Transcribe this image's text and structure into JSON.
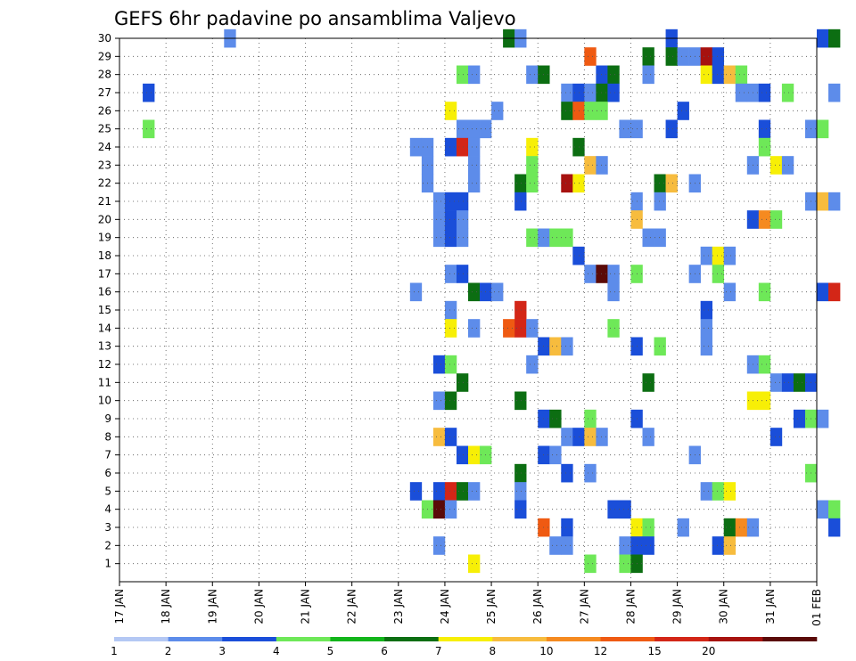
{
  "chart_data": {
    "type": "heatmap",
    "title": "GEFS 6hr padavine po ansamblima Valjevo",
    "xlabel": "",
    "ylabel": "",
    "x_ticks": [
      "17 JAN",
      "18 JAN",
      "19 JAN",
      "20 JAN",
      "21 JAN",
      "22 JAN",
      "23 JAN",
      "24 JAN",
      "25 JAN",
      "26 JAN",
      "27 JAN",
      "28 JAN",
      "29 JAN",
      "30 JAN",
      "31 JAN",
      "01 FEB"
    ],
    "y_ticks": [
      "1",
      "2",
      "3",
      "4",
      "5",
      "6",
      "7",
      "8",
      "9",
      "10",
      "11",
      "12",
      "13",
      "14",
      "15",
      "16",
      "17",
      "18",
      "19",
      "20",
      "21",
      "22",
      "23",
      "24",
      "25",
      "26",
      "27",
      "28",
      "29",
      "30"
    ],
    "x_range": [
      0,
      15
    ],
    "y_range": [
      0,
      30
    ],
    "step_per_day": 4,
    "grid": true,
    "colorbar": {
      "levels": [
        "1",
        "2",
        "3",
        "4",
        "5",
        "6",
        "7",
        "8",
        "10",
        "12",
        "15",
        "20"
      ],
      "colors": [
        "#b4c8f4",
        "#5d8cea",
        "#1a4ed9",
        "#6ee858",
        "#12b51a",
        "#0c6e12",
        "#f7ef06",
        "#f7bc3e",
        "#f58a20",
        "#ef5a12",
        "#d32617",
        "#a7120f",
        "#5a0a08"
      ]
    },
    "cells": [
      [
        4.5,
        30,
        1
      ],
      [
        16.5,
        30,
        5
      ],
      [
        17,
        30,
        1
      ],
      [
        23.5,
        30,
        2
      ],
      [
        30,
        30,
        2
      ],
      [
        30.5,
        30,
        5
      ],
      [
        20,
        29,
        9
      ],
      [
        22.5,
        29,
        5
      ],
      [
        23.5,
        29,
        5
      ],
      [
        24,
        29,
        1
      ],
      [
        24.5,
        29,
        1
      ],
      [
        25,
        29,
        11
      ],
      [
        25.5,
        29,
        2
      ],
      [
        14.5,
        28,
        3
      ],
      [
        15,
        28,
        1
      ],
      [
        17.5,
        28,
        1
      ],
      [
        18,
        28,
        5
      ],
      [
        20.5,
        28,
        2
      ],
      [
        21,
        28,
        5
      ],
      [
        22.5,
        28,
        1
      ],
      [
        25,
        28,
        6
      ],
      [
        25.5,
        28,
        2
      ],
      [
        26,
        28,
        7
      ],
      [
        26.5,
        28,
        3
      ],
      [
        1,
        27,
        2
      ],
      [
        19,
        27,
        1
      ],
      [
        19.5,
        27,
        2
      ],
      [
        20,
        27,
        1
      ],
      [
        20.5,
        27,
        5
      ],
      [
        21,
        27,
        2
      ],
      [
        26.5,
        27,
        1
      ],
      [
        27,
        27,
        1
      ],
      [
        27.5,
        27,
        2
      ],
      [
        28.5,
        27,
        3
      ],
      [
        30.5,
        27,
        1
      ],
      [
        14,
        26,
        6
      ],
      [
        16,
        26,
        1
      ],
      [
        19,
        26,
        5
      ],
      [
        19.5,
        26,
        9
      ],
      [
        20,
        26,
        3
      ],
      [
        20.5,
        26,
        3
      ],
      [
        24,
        26,
        2
      ],
      [
        1,
        25,
        3
      ],
      [
        14.5,
        25,
        1
      ],
      [
        15,
        25,
        1
      ],
      [
        15.5,
        25,
        1
      ],
      [
        21.5,
        25,
        1
      ],
      [
        22,
        25,
        1
      ],
      [
        23.5,
        25,
        2
      ],
      [
        27.5,
        25,
        2
      ],
      [
        29.5,
        25,
        1
      ],
      [
        30,
        25,
        3
      ],
      [
        12.5,
        24,
        1
      ],
      [
        13,
        24,
        1
      ],
      [
        14,
        24,
        2
      ],
      [
        14.5,
        24,
        10
      ],
      [
        15,
        24,
        1
      ],
      [
        17.5,
        24,
        6
      ],
      [
        19.5,
        24,
        5
      ],
      [
        27.5,
        24,
        3
      ],
      [
        13,
        23,
        1
      ],
      [
        15,
        23,
        1
      ],
      [
        17.5,
        23,
        3
      ],
      [
        20,
        23,
        7
      ],
      [
        20.5,
        23,
        1
      ],
      [
        27,
        23,
        1
      ],
      [
        28,
        23,
        6
      ],
      [
        28.5,
        23,
        1
      ],
      [
        13,
        22,
        1
      ],
      [
        15,
        22,
        1
      ],
      [
        17,
        22,
        5
      ],
      [
        17.5,
        22,
        3
      ],
      [
        19,
        22,
        11
      ],
      [
        19.5,
        22,
        6
      ],
      [
        23,
        22,
        5
      ],
      [
        23.5,
        22,
        7
      ],
      [
        24.5,
        22,
        1
      ],
      [
        13.5,
        21,
        1
      ],
      [
        14,
        21,
        2
      ],
      [
        14.5,
        21,
        2
      ],
      [
        17,
        21,
        2
      ],
      [
        22,
        21,
        1
      ],
      [
        23,
        21,
        1
      ],
      [
        29.5,
        21,
        1
      ],
      [
        30,
        21,
        7
      ],
      [
        30.5,
        21,
        1
      ],
      [
        13.5,
        20,
        1
      ],
      [
        14,
        20,
        2
      ],
      [
        14.5,
        20,
        1
      ],
      [
        22,
        20,
        7
      ],
      [
        27,
        20,
        2
      ],
      [
        27.5,
        20,
        8
      ],
      [
        28,
        20,
        3
      ],
      [
        13.5,
        19,
        1
      ],
      [
        14,
        19,
        2
      ],
      [
        14.5,
        19,
        1
      ],
      [
        17.5,
        19,
        3
      ],
      [
        18,
        19,
        1
      ],
      [
        18.5,
        19,
        3
      ],
      [
        19,
        19,
        3
      ],
      [
        22.5,
        19,
        1
      ],
      [
        23,
        19,
        1
      ],
      [
        19.5,
        18,
        2
      ],
      [
        25,
        18,
        1
      ],
      [
        25.5,
        18,
        6
      ],
      [
        26,
        18,
        1
      ],
      [
        14,
        17,
        1
      ],
      [
        14.5,
        17,
        2
      ],
      [
        20,
        17,
        1
      ],
      [
        20.5,
        17,
        12
      ],
      [
        21,
        17,
        1
      ],
      [
        22,
        17,
        3
      ],
      [
        24.5,
        17,
        1
      ],
      [
        25.5,
        17,
        3
      ],
      [
        12.5,
        16,
        1
      ],
      [
        15,
        16,
        5
      ],
      [
        15.5,
        16,
        2
      ],
      [
        16,
        16,
        1
      ],
      [
        21,
        16,
        1
      ],
      [
        26,
        16,
        1
      ],
      [
        27.5,
        16,
        3
      ],
      [
        30,
        16,
        2
      ],
      [
        30.5,
        16,
        10
      ],
      [
        14,
        15,
        1
      ],
      [
        17,
        15,
        10
      ],
      [
        25,
        15,
        2
      ],
      [
        14,
        14,
        6
      ],
      [
        15,
        14,
        1
      ],
      [
        16.5,
        14,
        9
      ],
      [
        17,
        14,
        10
      ],
      [
        17.5,
        14,
        1
      ],
      [
        21,
        14,
        3
      ],
      [
        25,
        14,
        1
      ],
      [
        18,
        13,
        2
      ],
      [
        18.5,
        13,
        7
      ],
      [
        19,
        13,
        1
      ],
      [
        22,
        13,
        2
      ],
      [
        23,
        13,
        3
      ],
      [
        25,
        13,
        1
      ],
      [
        13.5,
        12,
        2
      ],
      [
        14,
        12,
        3
      ],
      [
        17.5,
        12,
        1
      ],
      [
        27,
        12,
        1
      ],
      [
        27.5,
        12,
        3
      ],
      [
        14.5,
        11,
        5
      ],
      [
        22.5,
        11,
        5
      ],
      [
        28,
        11,
        1
      ],
      [
        28.5,
        11,
        2
      ],
      [
        29,
        11,
        5
      ],
      [
        29.5,
        11,
        2
      ],
      [
        13.5,
        10,
        1
      ],
      [
        14,
        10,
        5
      ],
      [
        17,
        10,
        5
      ],
      [
        27,
        10,
        6
      ],
      [
        27.5,
        10,
        6
      ],
      [
        18,
        9,
        2
      ],
      [
        18.5,
        9,
        5
      ],
      [
        20,
        9,
        3
      ],
      [
        22,
        9,
        2
      ],
      [
        29,
        9,
        2
      ],
      [
        29.5,
        9,
        3
      ],
      [
        30,
        9,
        1
      ],
      [
        13.5,
        8,
        7
      ],
      [
        14,
        8,
        2
      ],
      [
        19,
        8,
        1
      ],
      [
        19.5,
        8,
        2
      ],
      [
        20,
        8,
        7
      ],
      [
        20.5,
        8,
        1
      ],
      [
        22.5,
        8,
        1
      ],
      [
        28,
        8,
        2
      ],
      [
        14.5,
        7,
        2
      ],
      [
        15,
        7,
        6
      ],
      [
        15.5,
        7,
        3
      ],
      [
        18,
        7,
        2
      ],
      [
        18.5,
        7,
        1
      ],
      [
        24.5,
        7,
        1
      ],
      [
        17,
        6,
        5
      ],
      [
        19,
        6,
        2
      ],
      [
        20,
        6,
        1
      ],
      [
        29.5,
        6,
        3
      ],
      [
        12.5,
        5,
        2
      ],
      [
        13.5,
        5,
        2
      ],
      [
        14,
        5,
        10
      ],
      [
        14.5,
        5,
        5
      ],
      [
        15,
        5,
        1
      ],
      [
        17,
        5,
        1
      ],
      [
        25,
        5,
        1
      ],
      [
        25.5,
        5,
        3
      ],
      [
        26,
        5,
        6
      ],
      [
        13,
        4,
        3
      ],
      [
        13.5,
        4,
        12
      ],
      [
        14,
        4,
        1
      ],
      [
        17,
        4,
        2
      ],
      [
        21,
        4,
        2
      ],
      [
        21.5,
        4,
        2
      ],
      [
        30,
        4,
        1
      ],
      [
        30.5,
        4,
        3
      ],
      [
        18,
        3,
        9
      ],
      [
        19,
        3,
        2
      ],
      [
        22,
        3,
        6
      ],
      [
        22.5,
        3,
        3
      ],
      [
        24,
        3,
        1
      ],
      [
        26,
        3,
        5
      ],
      [
        26.5,
        3,
        8
      ],
      [
        27,
        3,
        1
      ],
      [
        30.5,
        3,
        2
      ],
      [
        13.5,
        2,
        1
      ],
      [
        18.5,
        2,
        1
      ],
      [
        19,
        2,
        1
      ],
      [
        21.5,
        2,
        1
      ],
      [
        22,
        2,
        2
      ],
      [
        22.5,
        2,
        2
      ],
      [
        25.5,
        2,
        2
      ],
      [
        26,
        2,
        7
      ],
      [
        15,
        1,
        6
      ],
      [
        20,
        1,
        3
      ],
      [
        21.5,
        1,
        3
      ],
      [
        22,
        1,
        5
      ]
    ]
  }
}
